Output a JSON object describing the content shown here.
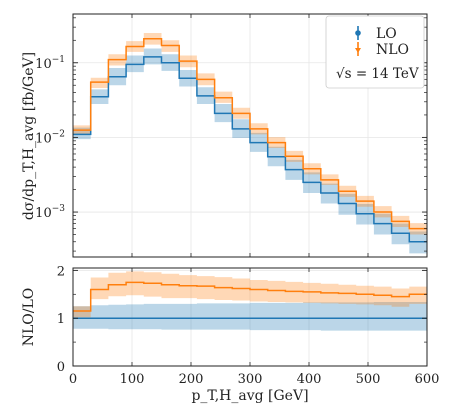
{
  "chart_data": [
    {
      "type": "line",
      "panel": "main",
      "ylabel": "dσ/dp_T,H_avg [fb/GeV]",
      "yscale": "log",
      "ylim": [
        0.00025,
        0.45
      ],
      "xlim": [
        0,
        600
      ],
      "grid": true,
      "legend_placement": "top-right",
      "annotation": "√s = 14 TeV",
      "y_tick_labels": [
        "10^-3",
        "10^-2",
        "10^-1"
      ],
      "x_bin_edges": [
        0,
        30,
        60,
        90,
        120,
        150,
        180,
        210,
        240,
        270,
        300,
        330,
        360,
        390,
        420,
        450,
        480,
        510,
        540,
        570,
        600
      ],
      "series": [
        {
          "name": "LO",
          "color": "#1f77b4",
          "values": [
            0.011,
            0.035,
            0.065,
            0.095,
            0.12,
            0.1,
            0.062,
            0.036,
            0.021,
            0.013,
            0.0085,
            0.0055,
            0.0037,
            0.0025,
            0.0018,
            0.0013,
            0.00095,
            0.0007,
            0.00052,
            0.0004
          ],
          "band_low": [
            0.0095,
            0.028,
            0.05,
            0.075,
            0.095,
            0.078,
            0.048,
            0.028,
            0.016,
            0.0098,
            0.0064,
            0.0041,
            0.0027,
            0.0018,
            0.0013,
            0.00092,
            0.00068,
            0.0005,
            0.00037,
            0.00028
          ],
          "band_high": [
            0.0135,
            0.044,
            0.085,
            0.125,
            0.155,
            0.13,
            0.08,
            0.047,
            0.028,
            0.0175,
            0.0115,
            0.0075,
            0.005,
            0.0034,
            0.0024,
            0.00175,
            0.00128,
            0.00095,
            0.0007,
            0.00055
          ]
        },
        {
          "name": "NLO",
          "color": "#ff7f0e",
          "values": [
            0.0125,
            0.055,
            0.11,
            0.165,
            0.21,
            0.17,
            0.105,
            0.06,
            0.034,
            0.021,
            0.013,
            0.0085,
            0.0056,
            0.0038,
            0.0027,
            0.0019,
            0.0014,
            0.001,
            0.00075,
            0.0006
          ],
          "band_low": [
            0.011,
            0.046,
            0.092,
            0.14,
            0.175,
            0.14,
            0.087,
            0.05,
            0.029,
            0.0178,
            0.011,
            0.0072,
            0.0047,
            0.0032,
            0.0023,
            0.0016,
            0.00118,
            0.00085,
            0.00063,
            0.0005
          ],
          "band_high": [
            0.0145,
            0.063,
            0.13,
            0.195,
            0.25,
            0.2,
            0.125,
            0.072,
            0.041,
            0.025,
            0.0155,
            0.0101,
            0.0066,
            0.0045,
            0.0032,
            0.00225,
            0.00165,
            0.0012,
            0.00089,
            0.00071
          ]
        }
      ]
    },
    {
      "type": "line",
      "panel": "ratio",
      "xlabel": "p_T,H_avg [GeV]",
      "ylabel": "NLO/LO",
      "ylim": [
        0,
        2.05
      ],
      "xlim": [
        0,
        600
      ],
      "grid": true,
      "y_tick_labels": [
        "0",
        "1",
        "2"
      ],
      "x_tick_labels": [
        "0",
        "100",
        "200",
        "300",
        "400",
        "500",
        "600"
      ],
      "x_bin_edges": [
        0,
        30,
        60,
        90,
        120,
        150,
        180,
        210,
        240,
        270,
        300,
        330,
        360,
        390,
        420,
        450,
        480,
        510,
        540,
        570,
        600
      ],
      "series": [
        {
          "name": "LO",
          "color": "#1f77b4",
          "values": [
            1,
            1,
            1,
            1,
            1,
            1,
            1,
            1,
            1,
            1,
            1,
            1,
            1,
            1,
            1,
            1,
            1,
            1,
            1,
            1
          ],
          "band_low": [
            0.78,
            0.78,
            0.77,
            0.77,
            0.77,
            0.76,
            0.76,
            0.76,
            0.76,
            0.76,
            0.75,
            0.75,
            0.75,
            0.75,
            0.74,
            0.74,
            0.74,
            0.74,
            0.74,
            0.74
          ],
          "band_high": [
            1.25,
            1.27,
            1.28,
            1.29,
            1.3,
            1.3,
            1.3,
            1.31,
            1.31,
            1.31,
            1.32,
            1.32,
            1.32,
            1.33,
            1.33,
            1.33,
            1.33,
            1.34,
            1.34,
            1.34
          ]
        },
        {
          "name": "NLO",
          "color": "#ff7f0e",
          "values": [
            1.15,
            1.6,
            1.7,
            1.75,
            1.73,
            1.7,
            1.68,
            1.67,
            1.64,
            1.62,
            1.6,
            1.58,
            1.56,
            1.55,
            1.53,
            1.52,
            1.5,
            1.48,
            1.45,
            1.5
          ],
          "band_low": [
            1.02,
            1.4,
            1.46,
            1.48,
            1.45,
            1.42,
            1.42,
            1.4,
            1.38,
            1.37,
            1.35,
            1.34,
            1.33,
            1.32,
            1.31,
            1.3,
            1.29,
            1.27,
            1.24,
            1.3
          ],
          "band_high": [
            1.25,
            1.85,
            1.95,
            1.98,
            1.96,
            1.93,
            1.9,
            1.88,
            1.86,
            1.83,
            1.8,
            1.78,
            1.76,
            1.74,
            1.72,
            1.7,
            1.68,
            1.66,
            1.62,
            1.66
          ]
        }
      ]
    }
  ]
}
